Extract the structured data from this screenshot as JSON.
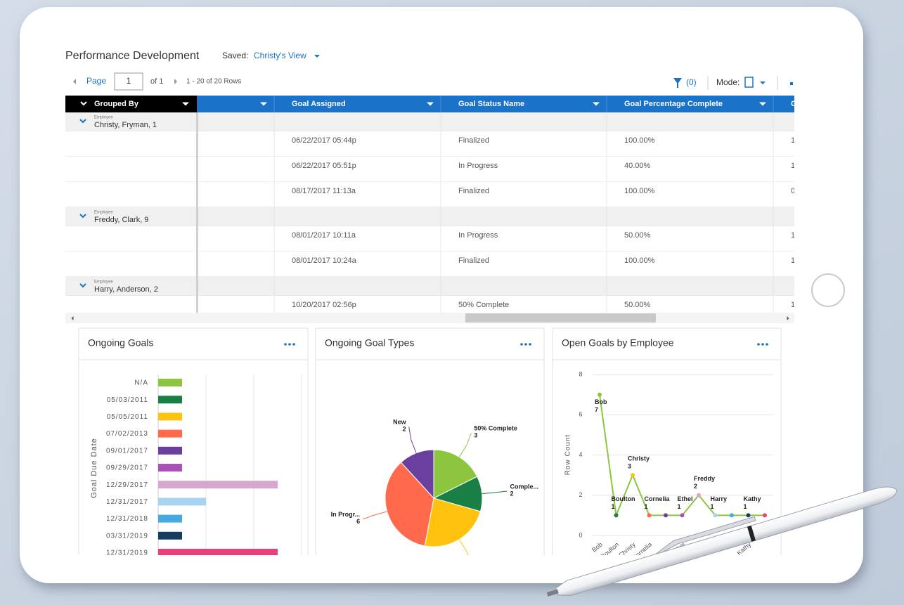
{
  "header": {
    "title": "Performance Development",
    "saved_label": "Saved:",
    "saved_view": "Christy's View"
  },
  "pagination": {
    "page_label": "Page",
    "page": "1",
    "of": "of 1",
    "rows": "1 - 20 of 20 Rows",
    "filter": "(0)",
    "mode": "Mode:"
  },
  "table": {
    "grouped_by": "Grouped By",
    "columns": [
      "Goal Assigned",
      "Goal Status Name",
      "Goal Percentage Complete",
      "G"
    ],
    "groups": [
      {
        "label": "Employee",
        "name": "Christy, Fryman, 1",
        "rows": [
          [
            "06/22/2017 05:44p",
            "Finalized",
            "100.00%",
            "1"
          ],
          [
            "06/22/2017 05:51p",
            "In Progress",
            "40.00%",
            "1"
          ],
          [
            "08/17/2017 11:13a",
            "Finalized",
            "100.00%",
            "0"
          ]
        ]
      },
      {
        "label": "Employee",
        "name": "Freddy, Clark, 9",
        "rows": [
          [
            "08/01/2017 10:11a",
            "In Progress",
            "50.00%",
            "1"
          ],
          [
            "08/01/2017 10:24a",
            "Finalized",
            "100.00%",
            "1"
          ]
        ]
      },
      {
        "label": "Employee",
        "name": "Harry, Anderson, 2",
        "rows": [
          [
            "10/20/2017 02:56p",
            "50% Complete",
            "50.00%",
            "1"
          ]
        ]
      }
    ]
  },
  "chart_data": [
    {
      "type": "bar",
      "orientation": "horizontal",
      "title": "Ongoing Goals",
      "ylabel": "Goal Due Date",
      "categories": [
        "N/A",
        "05/03/2011",
        "05/05/2011",
        "07/02/2013",
        "09/01/2017",
        "09/29/2017",
        "12/29/2017",
        "12/31/2017",
        "12/31/2018",
        "03/31/2019",
        "12/31/2019"
      ],
      "values": [
        1,
        1,
        1,
        1,
        1,
        1,
        5,
        2,
        1,
        1,
        5
      ],
      "colors": [
        "#8cc63f",
        "#1a7f45",
        "#ffc20e",
        "#ff6a4d",
        "#6b3fa0",
        "#a951b5",
        "#d6a8cd",
        "#a8d4f2",
        "#45a8e0",
        "#143d5e",
        "#e8407a"
      ],
      "xlim": [
        0,
        6
      ],
      "xticks": [
        0,
        2,
        4,
        6
      ],
      "grid": true
    },
    {
      "type": "pie",
      "title": "Ongoing Goal Types",
      "categories": [
        "50% Complete",
        "Comple...",
        null,
        "In Progr...",
        "New"
      ],
      "values": [
        3,
        2,
        4,
        6,
        2
      ],
      "colors": [
        "#8cc63f",
        "#1a7f45",
        "#ffc20e",
        "#ff6a4d",
        "#6b3fa0"
      ]
    },
    {
      "type": "line",
      "title": "Open Goals by Employee",
      "ylabel": "Row Count",
      "categories": [
        "Bob",
        "Boulton",
        "Christy",
        "Cornelia",
        null,
        "Ethel",
        "Freddy",
        "Harry",
        null,
        "Kathy",
        null
      ],
      "values": [
        7,
        1,
        3,
        1,
        1,
        1,
        2,
        1,
        1,
        1,
        1
      ],
      "color": "#8cc63f",
      "point_colors": [
        "#8cc63f",
        "#1a7f45",
        "#ffc20e",
        "#ff6a4d",
        "#6b3fa0",
        "#a951b5",
        "#d6a8cd",
        "#a8d4f2",
        "#45a8e0",
        "#143d5e",
        "#e8407a"
      ],
      "ylim": [
        0,
        8
      ],
      "yticks": [
        0,
        2,
        4,
        6,
        8
      ],
      "grid": true
    }
  ]
}
